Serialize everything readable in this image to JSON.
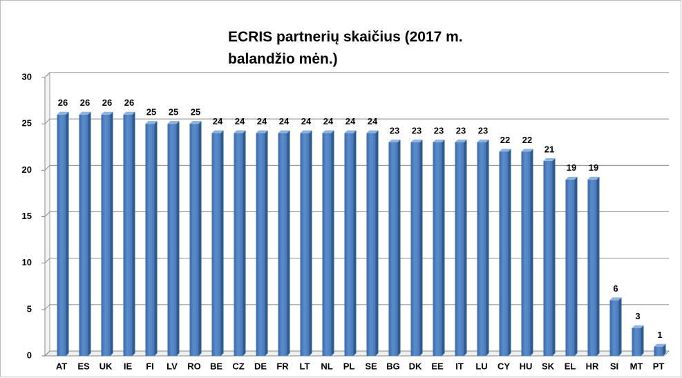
{
  "chart_data": {
    "type": "bar",
    "title": "ECRIS partnerių skaičius (2017 m. balandžio mėn.)",
    "categories": [
      "AT",
      "ES",
      "UK",
      "IE",
      "FI",
      "LV",
      "RO",
      "BE",
      "CZ",
      "DE",
      "FR",
      "LT",
      "NL",
      "PL",
      "SE",
      "BG",
      "DK",
      "EE",
      "IT",
      "LU",
      "CY",
      "HU",
      "SK",
      "EL",
      "HR",
      "SI",
      "MT",
      "PT"
    ],
    "values": [
      26,
      26,
      26,
      26,
      25,
      25,
      25,
      24,
      24,
      24,
      24,
      24,
      24,
      24,
      24,
      23,
      23,
      23,
      23,
      23,
      22,
      22,
      21,
      19,
      19,
      6,
      3,
      1
    ],
    "color": "#4f81bd",
    "ylim": [
      0,
      30
    ],
    "yticks": [
      0,
      5,
      10,
      15,
      20,
      25,
      30
    ],
    "grid": true
  }
}
